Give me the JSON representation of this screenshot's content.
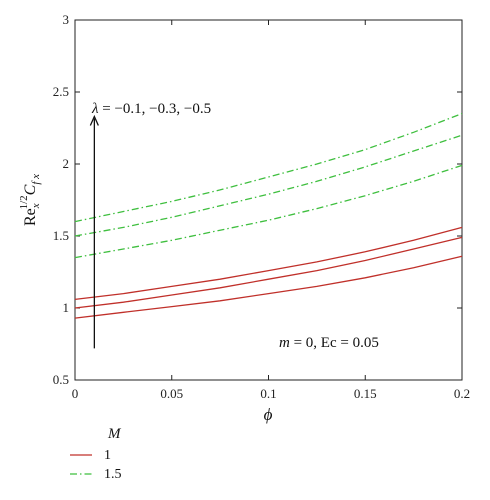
{
  "chart_data": {
    "type": "line",
    "xlabel": "ϕ",
    "ylabel_main": "Re",
    "ylabel_sub": "x",
    "ylabel_sup": "1/2",
    "ylabel_c": "C",
    "ylabel_csub": "f x",
    "xlim": [
      0,
      0.2
    ],
    "ylim": [
      0.5,
      3
    ],
    "xticks": [
      0,
      0.05,
      0.1,
      0.15,
      0.2
    ],
    "xtick_labels": [
      "0",
      "0.05",
      "0.1",
      "0.15",
      "0.2"
    ],
    "yticks": [
      0.5,
      1,
      1.5,
      2,
      2.5,
      3
    ],
    "ytick_labels": [
      "0.5",
      "1",
      "1.5",
      "2",
      "2.5",
      "3"
    ],
    "x": [
      0,
      0.025,
      0.05,
      0.075,
      0.1,
      0.125,
      0.15,
      0.175,
      0.2
    ],
    "series": [
      {
        "group": "1",
        "color": "#c0302a",
        "dash": "solid",
        "values": [
          1.06,
          1.1,
          1.15,
          1.2,
          1.26,
          1.32,
          1.39,
          1.47,
          1.56
        ]
      },
      {
        "group": "1",
        "color": "#c0302a",
        "dash": "solid",
        "values": [
          1.0,
          1.04,
          1.09,
          1.14,
          1.2,
          1.26,
          1.33,
          1.41,
          1.49
        ]
      },
      {
        "group": "1",
        "color": "#c0302a",
        "dash": "solid",
        "values": [
          0.93,
          0.97,
          1.01,
          1.05,
          1.1,
          1.15,
          1.21,
          1.28,
          1.36
        ]
      },
      {
        "group": "1.5",
        "color": "#3fbf3f",
        "dash": "dashdot",
        "values": [
          1.6,
          1.67,
          1.74,
          1.82,
          1.91,
          2.0,
          2.1,
          2.22,
          2.35
        ]
      },
      {
        "group": "1.5",
        "color": "#3fbf3f",
        "dash": "dashdot",
        "values": [
          1.5,
          1.56,
          1.63,
          1.71,
          1.79,
          1.88,
          1.98,
          2.09,
          2.2
        ]
      },
      {
        "group": "1.5",
        "color": "#3fbf3f",
        "dash": "dashdot",
        "values": [
          1.35,
          1.41,
          1.47,
          1.54,
          1.61,
          1.69,
          1.78,
          1.88,
          1.99
        ]
      }
    ],
    "annotations": {
      "lambda_symbol": "λ",
      "lambda_values": " = −0.1, −0.3, −0.5",
      "arrow_x": 0.01,
      "arrow_y_from": 0.72,
      "arrow_y_to": 2.33,
      "params_m": "m",
      "params_rest": " = 0, Ec = 0.05"
    },
    "legend": {
      "title": "M",
      "placement": "bottom-left",
      "items": [
        {
          "label": "1",
          "color": "#c0302a",
          "dash": "solid"
        },
        {
          "label": "1.5",
          "color": "#3fbf3f",
          "dash": "dashdot"
        }
      ]
    },
    "grid": false
  }
}
